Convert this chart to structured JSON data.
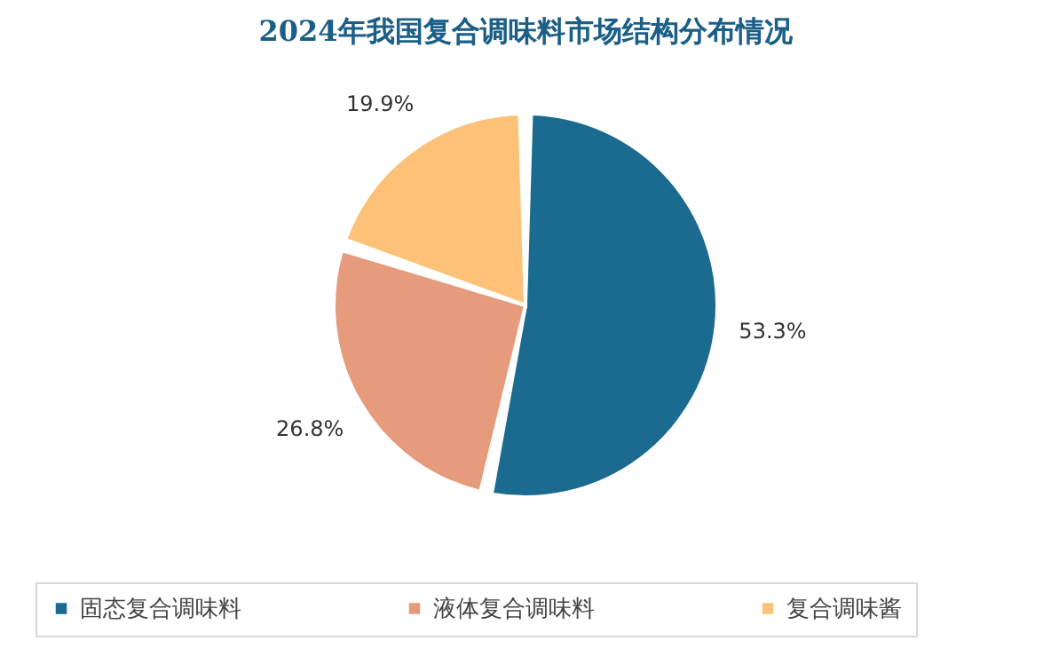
{
  "chart_data": {
    "type": "pie",
    "title": "2024年我国复合调味料市场结构分布情况",
    "categories": [
      "固态复合调味料",
      "液体复合调味料",
      "复合调味酱"
    ],
    "values": [
      53.3,
      26.8,
      19.9
    ],
    "colors": [
      "#1b6a8f",
      "#e59b7c",
      "#fdc177"
    ],
    "value_labels": [
      "53.3%",
      "26.8%",
      "19.9%"
    ],
    "legend": "bottom"
  }
}
